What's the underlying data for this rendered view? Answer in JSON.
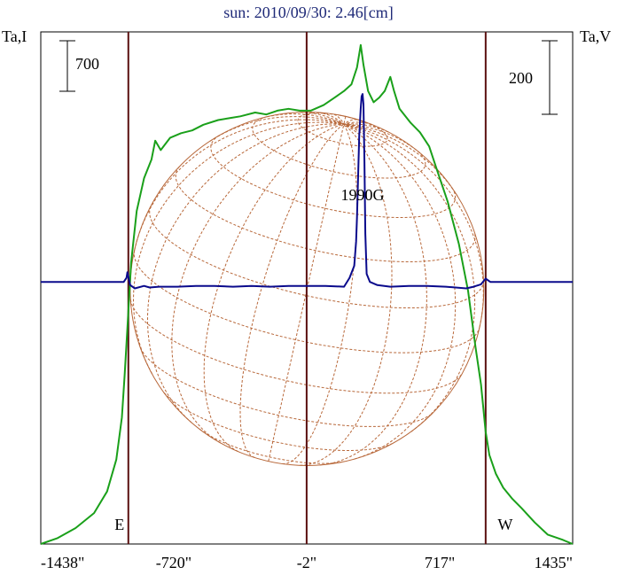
{
  "chart_data": {
    "type": "line",
    "title": "sun: 2010/09/30: 2.46[cm]",
    "left_ylabel": "Ta,I",
    "right_ylabel": "Ta,V",
    "left_scale_label": "700",
    "right_scale_label": "200",
    "xticks": [
      {
        "value": -1438,
        "label": "-1438\""
      },
      {
        "value": -720,
        "label": "-720\""
      },
      {
        "value": -2,
        "label": "-2\""
      },
      {
        "value": 717,
        "label": "717\""
      },
      {
        "value": 1435,
        "label": "1435\""
      }
    ],
    "xlim": [
      -1438,
      1435
    ],
    "limb_markers": [
      {
        "value": -965,
        "label": "E"
      },
      {
        "value": 965,
        "label": "W"
      }
    ],
    "center_marker": -2,
    "annotation": {
      "label": "1990G",
      "x": 300
    },
    "sun_radius": 955,
    "colors": {
      "title": "#1f2a78",
      "stokes_i": "#1aa01a",
      "stokes_v": "#0a0a8c",
      "disk": "#b8683a",
      "marker": "#5a1010"
    },
    "series": [
      {
        "name": "I",
        "ylim": [
          0,
          5460
        ],
        "points": [
          [
            -1438,
            0
          ],
          [
            -1350,
            60
          ],
          [
            -1250,
            170
          ],
          [
            -1150,
            330
          ],
          [
            -1080,
            560
          ],
          [
            -1030,
            900
          ],
          [
            -1000,
            1350
          ],
          [
            -985,
            1800
          ],
          [
            -970,
            2300
          ],
          [
            -950,
            3000
          ],
          [
            -920,
            3550
          ],
          [
            -880,
            3900
          ],
          [
            -840,
            4100
          ],
          [
            -820,
            4300
          ],
          [
            -790,
            4200
          ],
          [
            -740,
            4330
          ],
          [
            -680,
            4380
          ],
          [
            -620,
            4410
          ],
          [
            -560,
            4470
          ],
          [
            -480,
            4520
          ],
          [
            -420,
            4540
          ],
          [
            -360,
            4560
          ],
          [
            -280,
            4600
          ],
          [
            -220,
            4580
          ],
          [
            -160,
            4620
          ],
          [
            -100,
            4640
          ],
          [
            -40,
            4620
          ],
          [
            20,
            4620
          ],
          [
            90,
            4680
          ],
          [
            150,
            4760
          ],
          [
            200,
            4830
          ],
          [
            240,
            4900
          ],
          [
            270,
            5080
          ],
          [
            290,
            5320
          ],
          [
            305,
            5110
          ],
          [
            330,
            4830
          ],
          [
            360,
            4710
          ],
          [
            390,
            4760
          ],
          [
            420,
            4830
          ],
          [
            450,
            4980
          ],
          [
            470,
            4830
          ],
          [
            500,
            4640
          ],
          [
            560,
            4490
          ],
          [
            610,
            4390
          ],
          [
            660,
            4240
          ],
          [
            700,
            4000
          ],
          [
            760,
            3650
          ],
          [
            820,
            3200
          ],
          [
            870,
            2700
          ],
          [
            910,
            2100
          ],
          [
            940,
            1700
          ],
          [
            965,
            1200
          ],
          [
            985,
            950
          ],
          [
            1020,
            750
          ],
          [
            1060,
            600
          ],
          [
            1110,
            480
          ],
          [
            1160,
            380
          ],
          [
            1230,
            230
          ],
          [
            1300,
            100
          ],
          [
            1380,
            45
          ],
          [
            1435,
            0
          ]
        ]
      },
      {
        "name": "V",
        "ylim": [
          -325,
          310
        ],
        "points": [
          [
            -1438,
            0
          ],
          [
            -1200,
            0
          ],
          [
            -1050,
            0
          ],
          [
            -990,
            0
          ],
          [
            -975,
            5
          ],
          [
            -970,
            12
          ],
          [
            -955,
            -4
          ],
          [
            -930,
            -8
          ],
          [
            -880,
            -5
          ],
          [
            -850,
            -7
          ],
          [
            -800,
            -6
          ],
          [
            -700,
            -6
          ],
          [
            -600,
            -5
          ],
          [
            -500,
            -5
          ],
          [
            -400,
            -6
          ],
          [
            -300,
            -5
          ],
          [
            -200,
            -6
          ],
          [
            -100,
            -5
          ],
          [
            0,
            -5
          ],
          [
            100,
            -5
          ],
          [
            200,
            -6
          ],
          [
            230,
            5
          ],
          [
            255,
            20
          ],
          [
            265,
            50
          ],
          [
            270,
            80
          ],
          [
            275,
            120
          ],
          [
            282,
            180
          ],
          [
            290,
            215
          ],
          [
            295,
            230
          ],
          [
            300,
            233
          ],
          [
            305,
            220
          ],
          [
            310,
            150
          ],
          [
            315,
            60
          ],
          [
            322,
            10
          ],
          [
            340,
            0
          ],
          [
            380,
            -4
          ],
          [
            450,
            -6
          ],
          [
            550,
            -5
          ],
          [
            650,
            -5
          ],
          [
            750,
            -6
          ],
          [
            860,
            -8
          ],
          [
            900,
            -6
          ],
          [
            940,
            -3
          ],
          [
            965,
            4
          ],
          [
            990,
            0
          ],
          [
            1050,
            0
          ],
          [
            1200,
            0
          ],
          [
            1300,
            0
          ],
          [
            1435,
            0
          ]
        ]
      }
    ]
  }
}
